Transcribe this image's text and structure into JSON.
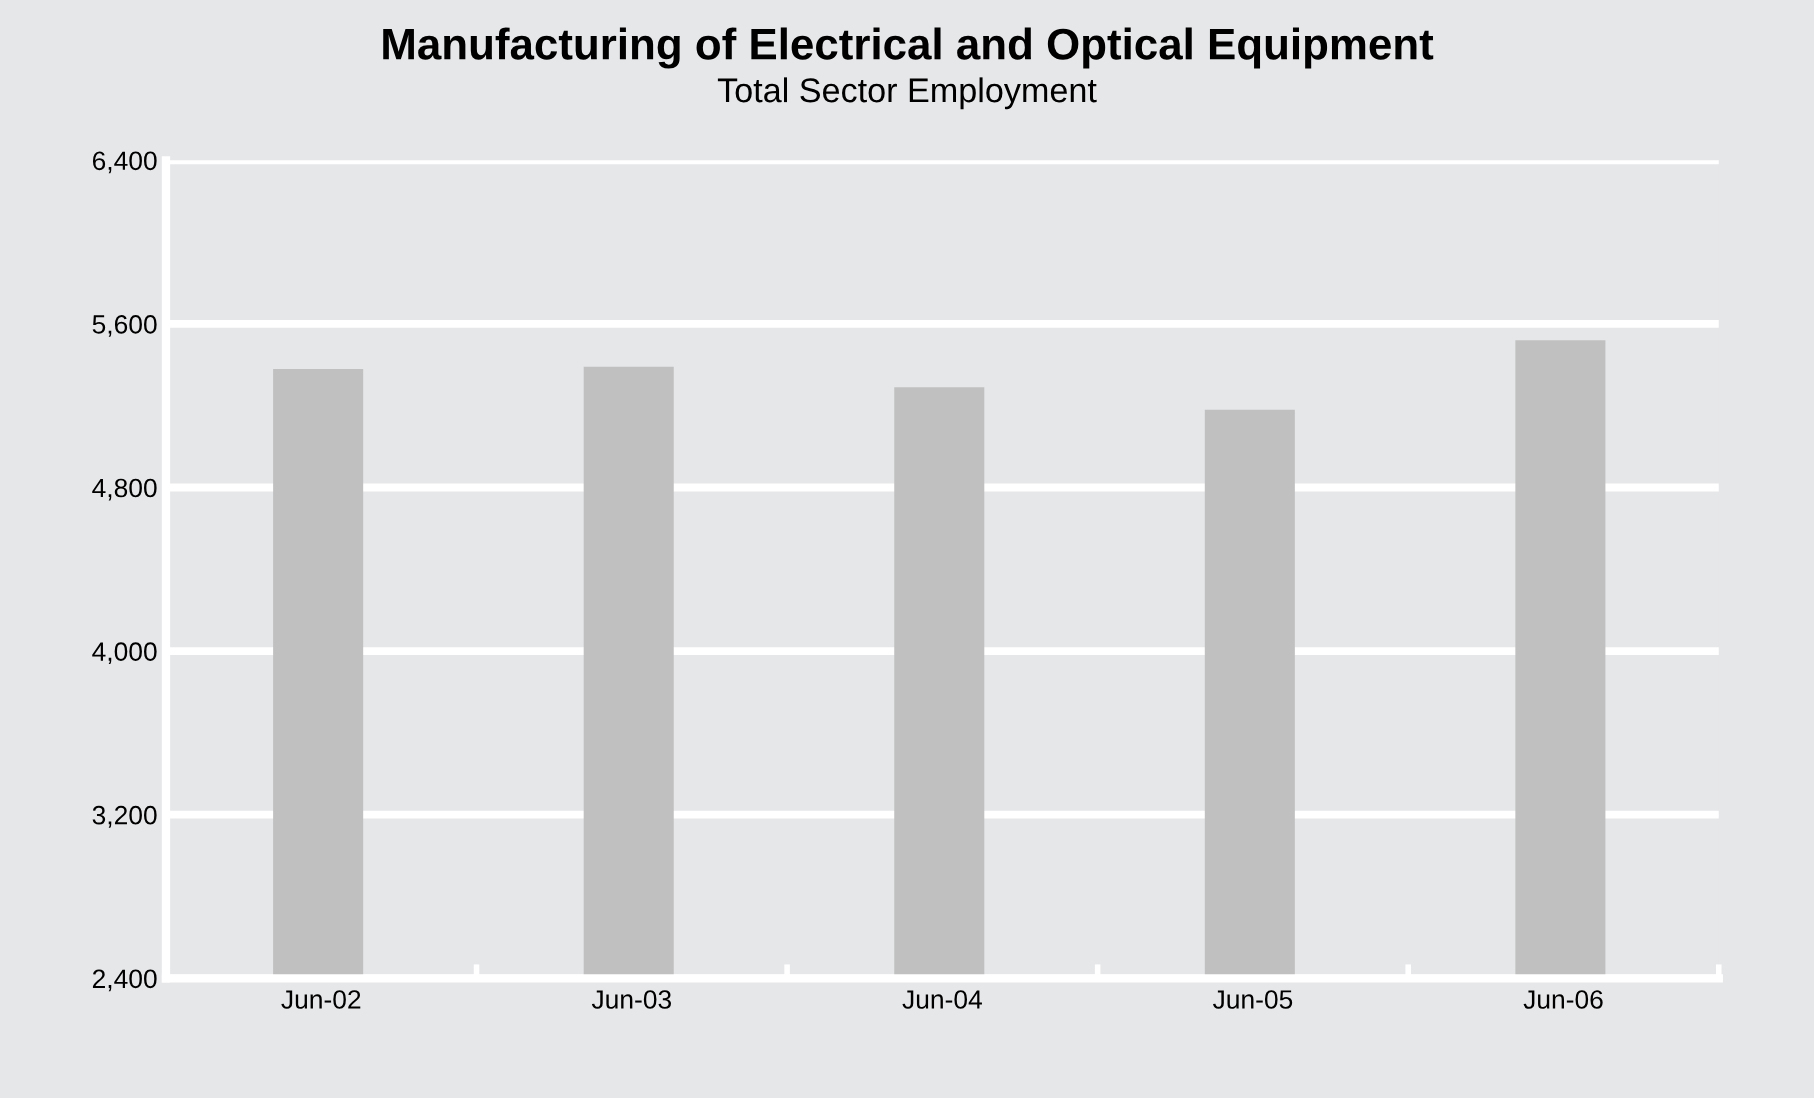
{
  "chart_data": {
    "type": "bar",
    "title": "Manufacturing of Electrical and Optical Equipment",
    "subtitle": "Total Sector Employment",
    "categories": [
      "Jun-02",
      "Jun-03",
      "Jun-04",
      "Jun-05",
      "Jun-06"
    ],
    "values": [
      5380,
      5390,
      5290,
      5180,
      5520
    ],
    "color": "#c0c0c0",
    "ylim": [
      2400,
      6400
    ],
    "yticks": [
      {
        "value": 2400,
        "label": "2,400"
      },
      {
        "value": 3200,
        "label": "3,200"
      },
      {
        "value": 4000,
        "label": "4,000"
      },
      {
        "value": 4800,
        "label": "4,800"
      },
      {
        "value": 5600,
        "label": "5,600"
      },
      {
        "value": 6400,
        "label": "6,400"
      }
    ],
    "grid": "y"
  }
}
